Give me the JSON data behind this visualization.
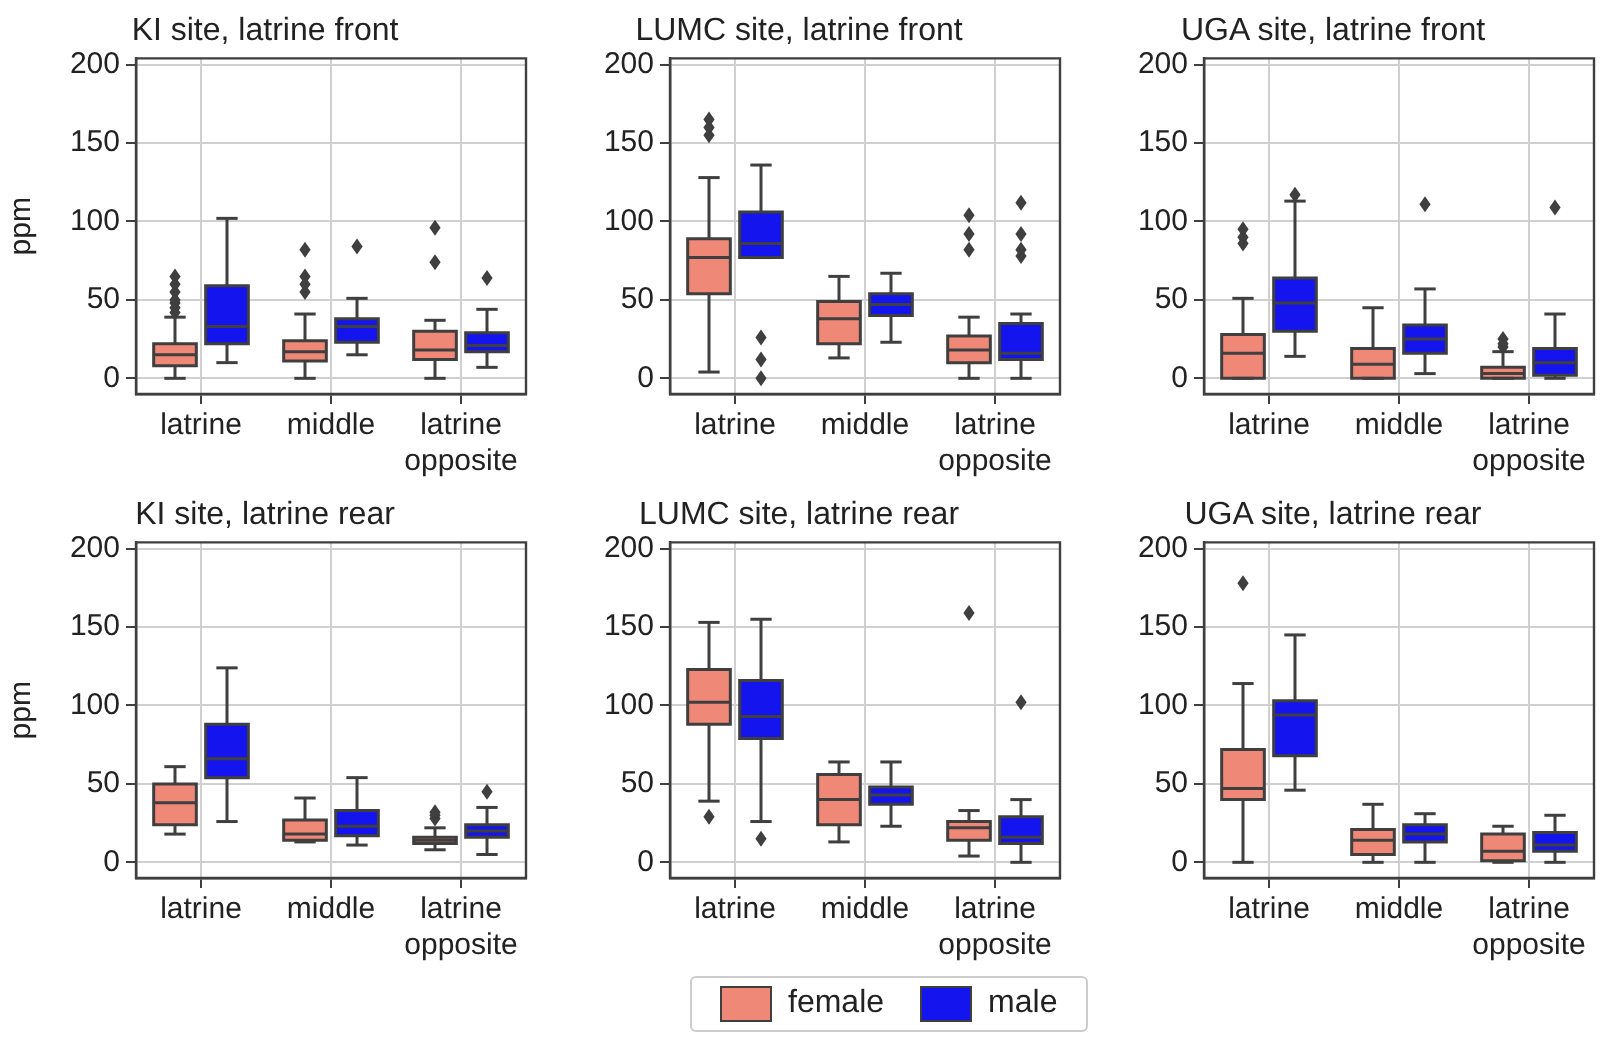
{
  "chart_data": [
    {
      "type": "box",
      "title": "KI site, latrine front",
      "ylabel": "ppm",
      "categories": [
        "latrine",
        "middle",
        "latrine\nopposite"
      ],
      "ylim": [
        -10,
        204
      ],
      "yticks": [
        0,
        50,
        100,
        150,
        200
      ],
      "grid": true,
      "legend": "bottom",
      "series": [
        {
          "name": "female",
          "color": "#f08878",
          "boxes": [
            {
              "low": 0,
              "q1": 8,
              "median": 15,
              "q3": 22,
              "high": 39,
              "outliers": [
                42,
                45,
                48,
                50,
                55,
                60,
                65
              ]
            },
            {
              "low": 0,
              "q1": 11,
              "median": 17,
              "q3": 24,
              "high": 41,
              "outliers": [
                55,
                60,
                65,
                82
              ]
            },
            {
              "low": 0,
              "q1": 12,
              "median": 18,
              "q3": 30,
              "high": 37,
              "outliers": [
                74,
                96
              ]
            }
          ]
        },
        {
          "name": "male",
          "color": "#1414ee",
          "boxes": [
            {
              "low": 10,
              "q1": 22,
              "median": 33,
              "q3": 59,
              "high": 102
            },
            {
              "low": 15,
              "q1": 23,
              "median": 33,
              "q3": 38,
              "high": 51,
              "outliers": [
                84
              ]
            },
            {
              "low": 7,
              "q1": 17,
              "median": 21,
              "q3": 29,
              "high": 44,
              "outliers": [
                64
              ]
            }
          ]
        }
      ]
    },
    {
      "type": "box",
      "title": "LUMC site, latrine front",
      "categories": [
        "latrine",
        "middle",
        "latrine\nopposite"
      ],
      "ylim": [
        -10,
        204
      ],
      "yticks": [
        0,
        50,
        100,
        150,
        200
      ],
      "grid": true,
      "series": [
        {
          "color": "#f08878",
          "boxes": [
            {
              "low": 4,
              "q1": 54,
              "median": 77,
              "q3": 89,
              "high": 128,
              "outliers": [
                155,
                160,
                165
              ]
            },
            {
              "low": 13,
              "q1": 22,
              "median": 38,
              "q3": 49,
              "high": 65
            },
            {
              "low": 0,
              "q1": 10,
              "median": 18,
              "q3": 27,
              "high": 39,
              "outliers": [
                82,
                92,
                104
              ]
            }
          ]
        },
        {
          "color": "#1414ee",
          "boxes": [
            {
              "low": 77,
              "q1": 77,
              "median": 86,
              "q3": 106,
              "high": 136,
              "outliers": [
                0,
                12,
                26
              ]
            },
            {
              "low": 23,
              "q1": 40,
              "median": 47,
              "q3": 54,
              "high": 67
            },
            {
              "low": 0,
              "q1": 12,
              "median": 16,
              "q3": 35,
              "high": 41,
              "outliers": [
                78,
                82,
                92,
                112
              ]
            }
          ]
        }
      ]
    },
    {
      "type": "box",
      "title": "UGA site, latrine front",
      "categories": [
        "latrine",
        "middle",
        "latrine\nopposite"
      ],
      "ylim": [
        -10,
        204
      ],
      "yticks": [
        0,
        50,
        100,
        150,
        200
      ],
      "grid": true,
      "series": [
        {
          "color": "#f08878",
          "boxes": [
            {
              "low": 0,
              "q1": 0,
              "median": 16,
              "q3": 28,
              "high": 51,
              "outliers": [
                86,
                90,
                95
              ]
            },
            {
              "low": 0,
              "q1": 0,
              "median": 9,
              "q3": 19,
              "high": 45
            },
            {
              "low": 0,
              "q1": 0,
              "median": 3,
              "q3": 7,
              "high": 17,
              "outliers": [
                20,
                22,
                25
              ]
            }
          ]
        },
        {
          "color": "#1414ee",
          "boxes": [
            {
              "low": 14,
              "q1": 30,
              "median": 48,
              "q3": 64,
              "high": 113,
              "outliers": [
                117
              ]
            },
            {
              "low": 3,
              "q1": 16,
              "median": 25,
              "q3": 34,
              "high": 57,
              "outliers": [
                111
              ]
            },
            {
              "low": 0,
              "q1": 2,
              "median": 10,
              "q3": 19,
              "high": 41,
              "outliers": [
                109
              ]
            }
          ]
        }
      ]
    },
    {
      "type": "box",
      "title": "KI site, latrine rear",
      "ylabel": "ppm",
      "categories": [
        "latrine",
        "middle",
        "latrine\nopposite"
      ],
      "ylim": [
        -10,
        204
      ],
      "yticks": [
        0,
        50,
        100,
        150,
        200
      ],
      "grid": true,
      "series": [
        {
          "color": "#f08878",
          "boxes": [
            {
              "low": 18,
              "q1": 24,
              "median": 38,
              "q3": 50,
              "high": 61
            },
            {
              "low": 13,
              "q1": 14,
              "median": 18,
              "q3": 27,
              "high": 41
            },
            {
              "low": 8,
              "q1": 12,
              "median": 14,
              "q3": 16,
              "high": 22,
              "outliers": [
                28,
                30,
                32
              ]
            }
          ]
        },
        {
          "color": "#1414ee",
          "boxes": [
            {
              "low": 26,
              "q1": 54,
              "median": 66,
              "q3": 88,
              "high": 124
            },
            {
              "low": 11,
              "q1": 17,
              "median": 23,
              "q3": 33,
              "high": 54
            },
            {
              "low": 5,
              "q1": 16,
              "median": 20,
              "q3": 24,
              "high": 35,
              "outliers": [
                45
              ]
            }
          ]
        }
      ]
    },
    {
      "type": "box",
      "title": "LUMC site, latrine rear",
      "categories": [
        "latrine",
        "middle",
        "latrine\nopposite"
      ],
      "ylim": [
        -10,
        204
      ],
      "yticks": [
        0,
        50,
        100,
        150,
        200
      ],
      "grid": true,
      "series": [
        {
          "color": "#f08878",
          "boxes": [
            {
              "low": 39,
              "q1": 88,
              "median": 102,
              "q3": 123,
              "high": 153,
              "outliers": [
                29
              ]
            },
            {
              "low": 13,
              "q1": 24,
              "median": 40,
              "q3": 56,
              "high": 64
            },
            {
              "low": 4,
              "q1": 14,
              "median": 22,
              "q3": 26,
              "high": 33,
              "outliers": [
                159
              ]
            }
          ]
        },
        {
          "color": "#1414ee",
          "boxes": [
            {
              "low": 26,
              "q1": 79,
              "median": 93,
              "q3": 116,
              "high": 155,
              "outliers": [
                15
              ]
            },
            {
              "low": 23,
              "q1": 37,
              "median": 43,
              "q3": 48,
              "high": 64
            },
            {
              "low": 0,
              "q1": 12,
              "median": 16,
              "q3": 29,
              "high": 40,
              "outliers": [
                102
              ]
            }
          ]
        }
      ]
    },
    {
      "type": "box",
      "title": "UGA site, latrine rear",
      "categories": [
        "latrine",
        "middle",
        "latrine\nopposite"
      ],
      "ylim": [
        -10,
        204
      ],
      "yticks": [
        0,
        50,
        100,
        150,
        200
      ],
      "grid": true,
      "series": [
        {
          "color": "#f08878",
          "boxes": [
            {
              "low": 0,
              "q1": 40,
              "median": 47,
              "q3": 72,
              "high": 114,
              "outliers": [
                178
              ]
            },
            {
              "low": 0,
              "q1": 5,
              "median": 14,
              "q3": 21,
              "high": 37
            },
            {
              "low": 0,
              "q1": 1,
              "median": 7,
              "q3": 18,
              "high": 23
            }
          ]
        },
        {
          "color": "#1414ee",
          "boxes": [
            {
              "low": 46,
              "q1": 68,
              "median": 94,
              "q3": 103,
              "high": 145
            },
            {
              "low": 0,
              "q1": 13,
              "median": 18,
              "q3": 24,
              "high": 31
            },
            {
              "low": 0,
              "q1": 7,
              "median": 11,
              "q3": 19,
              "high": 30
            }
          ]
        }
      ]
    }
  ]
}
